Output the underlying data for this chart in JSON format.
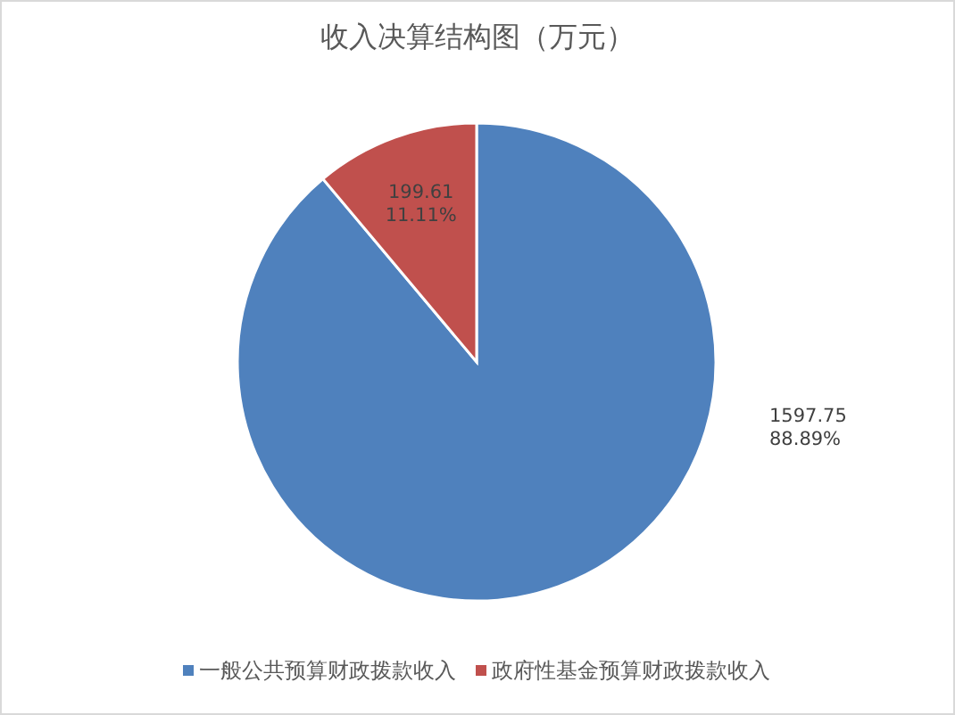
{
  "chart_data": {
    "type": "pie",
    "title": "收入决算结构图（万元）",
    "categories": [
      "一般公共预算财政拨款收入",
      "政府性基金预算财政拨款收入"
    ],
    "values": [
      1597.75,
      199.61
    ],
    "colors": [
      "#4f81bd",
      "#c0504d"
    ],
    "value_labels": [
      "1597.75\n88.89%",
      "199.61\n11.11%"
    ],
    "legend": "bottom"
  }
}
